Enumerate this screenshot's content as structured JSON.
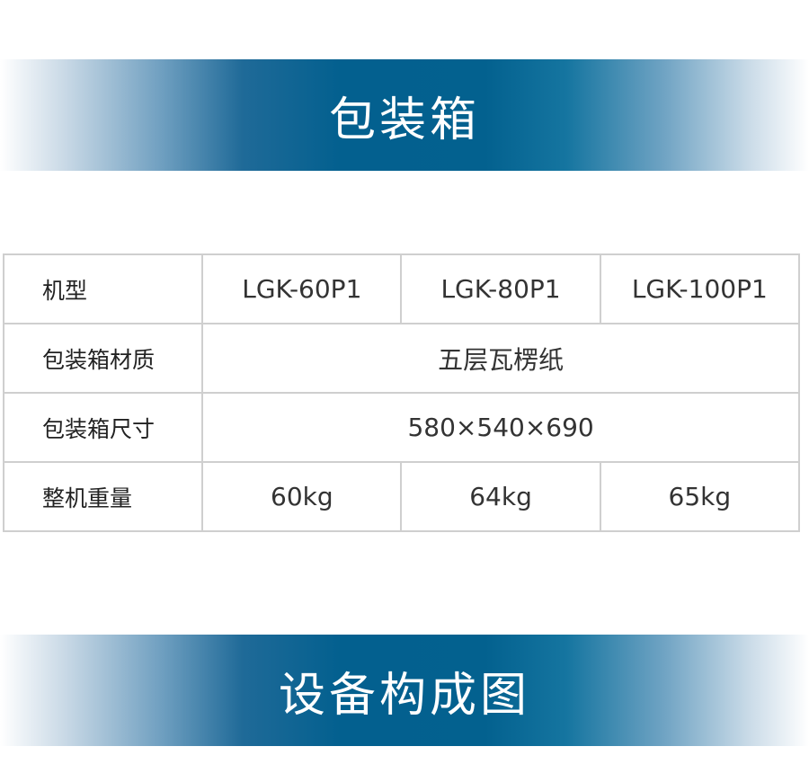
{
  "banner_top": {
    "title": "包装箱"
  },
  "table": {
    "rows": [
      {
        "label": "机型",
        "values": [
          "LGK-60P1",
          "LGK-80P1",
          "LGK-100P1"
        ]
      },
      {
        "label": "包装箱材质",
        "value": "五层瓦楞纸"
      },
      {
        "label": "包装箱尺寸",
        "value": "580×540×690"
      },
      {
        "label": "整机重量",
        "values": [
          "60kg",
          "64kg",
          "65kg"
        ]
      }
    ]
  },
  "banner_bottom": {
    "title": "设备构成图"
  },
  "colors": {
    "banner_blue": "#03608f",
    "border": "#cfcfcf"
  }
}
